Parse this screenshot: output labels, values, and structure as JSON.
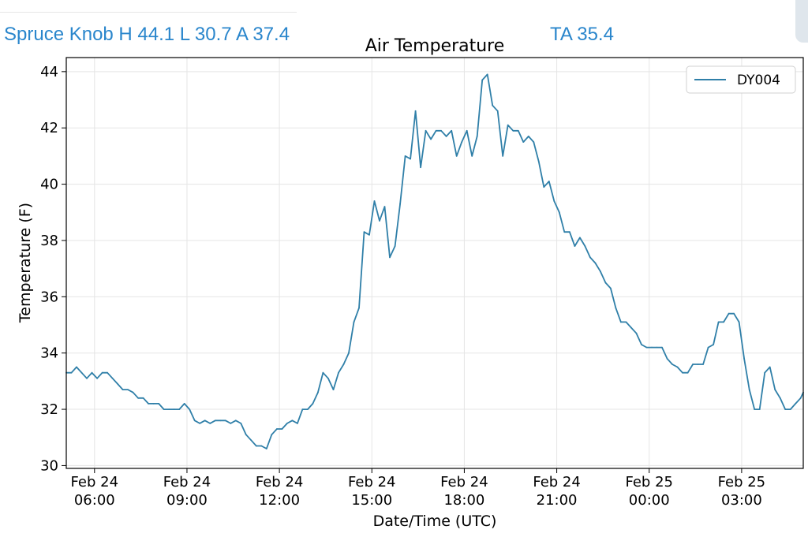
{
  "header": {
    "summary_left": "Spruce Knob H 44.1 L 30.7 A 37.4",
    "summary_right": "TA 35.4",
    "text_color": "#2a86cc"
  },
  "chart_data": {
    "type": "line",
    "title": "Air Temperature",
    "xlabel": "Date/Time (UTC)",
    "ylabel": "Temperature (F)",
    "xlim": [
      "2024-02-24T05:05",
      "2024-02-25T05:00"
    ],
    "ylim": [
      29.9,
      44.5
    ],
    "yticks": [
      30,
      32,
      34,
      36,
      38,
      40,
      42,
      44
    ],
    "xticks": [
      {
        "t": "2024-02-24T06:00",
        "line1": "Feb 24",
        "line2": "06:00"
      },
      {
        "t": "2024-02-24T09:00",
        "line1": "Feb 24",
        "line2": "09:00"
      },
      {
        "t": "2024-02-24T12:00",
        "line1": "Feb 24",
        "line2": "12:00"
      },
      {
        "t": "2024-02-24T15:00",
        "line1": "Feb 24",
        "line2": "15:00"
      },
      {
        "t": "2024-02-24T18:00",
        "line1": "Feb 24",
        "line2": "18:00"
      },
      {
        "t": "2024-02-24T21:00",
        "line1": "Feb 24",
        "line2": "21:00"
      },
      {
        "t": "2024-02-25T00:00",
        "line1": "Feb 25",
        "line2": "00:00"
      },
      {
        "t": "2024-02-25T03:00",
        "line1": "Feb 25",
        "line2": "03:00"
      }
    ],
    "grid": true,
    "legend_position": "top-right",
    "series": [
      {
        "name": "DY004",
        "color": "#2f7fa8",
        "points": [
          [
            "2024-02-24T05:05",
            33.3
          ],
          [
            "2024-02-24T05:15",
            33.3
          ],
          [
            "2024-02-24T05:25",
            33.5
          ],
          [
            "2024-02-24T05:35",
            33.3
          ],
          [
            "2024-02-24T05:45",
            33.1
          ],
          [
            "2024-02-24T05:55",
            33.3
          ],
          [
            "2024-02-24T06:05",
            33.1
          ],
          [
            "2024-02-24T06:15",
            33.3
          ],
          [
            "2024-02-24T06:25",
            33.3
          ],
          [
            "2024-02-24T06:35",
            33.1
          ],
          [
            "2024-02-24T06:45",
            32.9
          ],
          [
            "2024-02-24T06:55",
            32.7
          ],
          [
            "2024-02-24T07:05",
            32.7
          ],
          [
            "2024-02-24T07:15",
            32.6
          ],
          [
            "2024-02-24T07:25",
            32.4
          ],
          [
            "2024-02-24T07:35",
            32.4
          ],
          [
            "2024-02-24T07:45",
            32.2
          ],
          [
            "2024-02-24T07:55",
            32.2
          ],
          [
            "2024-02-24T08:05",
            32.2
          ],
          [
            "2024-02-24T08:15",
            32.0
          ],
          [
            "2024-02-24T08:25",
            32.0
          ],
          [
            "2024-02-24T08:35",
            32.0
          ],
          [
            "2024-02-24T08:45",
            32.0
          ],
          [
            "2024-02-24T08:55",
            32.2
          ],
          [
            "2024-02-24T09:05",
            32.0
          ],
          [
            "2024-02-24T09:15",
            31.6
          ],
          [
            "2024-02-24T09:25",
            31.5
          ],
          [
            "2024-02-24T09:35",
            31.6
          ],
          [
            "2024-02-24T09:45",
            31.5
          ],
          [
            "2024-02-24T09:55",
            31.6
          ],
          [
            "2024-02-24T10:05",
            31.6
          ],
          [
            "2024-02-24T10:15",
            31.6
          ],
          [
            "2024-02-24T10:25",
            31.5
          ],
          [
            "2024-02-24T10:35",
            31.6
          ],
          [
            "2024-02-24T10:45",
            31.5
          ],
          [
            "2024-02-24T10:55",
            31.1
          ],
          [
            "2024-02-24T11:05",
            30.9
          ],
          [
            "2024-02-24T11:15",
            30.7
          ],
          [
            "2024-02-24T11:25",
            30.7
          ],
          [
            "2024-02-24T11:35",
            30.6
          ],
          [
            "2024-02-24T11:45",
            31.1
          ],
          [
            "2024-02-24T11:55",
            31.3
          ],
          [
            "2024-02-24T12:05",
            31.3
          ],
          [
            "2024-02-24T12:15",
            31.5
          ],
          [
            "2024-02-24T12:25",
            31.6
          ],
          [
            "2024-02-24T12:35",
            31.5
          ],
          [
            "2024-02-24T12:45",
            32.0
          ],
          [
            "2024-02-24T12:55",
            32.0
          ],
          [
            "2024-02-24T13:05",
            32.2
          ],
          [
            "2024-02-24T13:15",
            32.6
          ],
          [
            "2024-02-24T13:25",
            33.3
          ],
          [
            "2024-02-24T13:35",
            33.1
          ],
          [
            "2024-02-24T13:45",
            32.7
          ],
          [
            "2024-02-24T13:55",
            33.3
          ],
          [
            "2024-02-24T14:05",
            33.6
          ],
          [
            "2024-02-24T14:15",
            34.0
          ],
          [
            "2024-02-24T14:25",
            35.1
          ],
          [
            "2024-02-24T14:35",
            35.6
          ],
          [
            "2024-02-24T14:45",
            38.3
          ],
          [
            "2024-02-24T14:55",
            38.2
          ],
          [
            "2024-02-24T15:05",
            39.4
          ],
          [
            "2024-02-24T15:15",
            38.7
          ],
          [
            "2024-02-24T15:25",
            39.2
          ],
          [
            "2024-02-24T15:35",
            37.4
          ],
          [
            "2024-02-24T15:45",
            37.8
          ],
          [
            "2024-02-24T15:55",
            39.3
          ],
          [
            "2024-02-24T16:05",
            41.0
          ],
          [
            "2024-02-24T16:15",
            40.9
          ],
          [
            "2024-02-24T16:25",
            42.6
          ],
          [
            "2024-02-24T16:35",
            40.6
          ],
          [
            "2024-02-24T16:45",
            41.9
          ],
          [
            "2024-02-24T16:55",
            41.6
          ],
          [
            "2024-02-24T17:05",
            41.9
          ],
          [
            "2024-02-24T17:15",
            41.9
          ],
          [
            "2024-02-24T17:25",
            41.7
          ],
          [
            "2024-02-24T17:35",
            41.9
          ],
          [
            "2024-02-24T17:45",
            41.0
          ],
          [
            "2024-02-24T17:55",
            41.5
          ],
          [
            "2024-02-24T18:05",
            41.9
          ],
          [
            "2024-02-24T18:15",
            41.0
          ],
          [
            "2024-02-24T18:25",
            41.7
          ],
          [
            "2024-02-24T18:35",
            43.7
          ],
          [
            "2024-02-24T18:45",
            43.9
          ],
          [
            "2024-02-24T18:55",
            42.8
          ],
          [
            "2024-02-24T19:05",
            42.6
          ],
          [
            "2024-02-24T19:15",
            41.0
          ],
          [
            "2024-02-24T19:25",
            42.1
          ],
          [
            "2024-02-24T19:35",
            41.9
          ],
          [
            "2024-02-24T19:45",
            41.9
          ],
          [
            "2024-02-24T19:55",
            41.5
          ],
          [
            "2024-02-24T20:05",
            41.7
          ],
          [
            "2024-02-24T20:15",
            41.5
          ],
          [
            "2024-02-24T20:25",
            40.8
          ],
          [
            "2024-02-24T20:35",
            39.9
          ],
          [
            "2024-02-24T20:45",
            40.1
          ],
          [
            "2024-02-24T20:55",
            39.4
          ],
          [
            "2024-02-24T21:05",
            39.0
          ],
          [
            "2024-02-24T21:15",
            38.3
          ],
          [
            "2024-02-24T21:25",
            38.3
          ],
          [
            "2024-02-24T21:35",
            37.8
          ],
          [
            "2024-02-24T21:45",
            38.1
          ],
          [
            "2024-02-24T21:55",
            37.8
          ],
          [
            "2024-02-24T22:05",
            37.4
          ],
          [
            "2024-02-24T22:15",
            37.2
          ],
          [
            "2024-02-24T22:25",
            36.9
          ],
          [
            "2024-02-24T22:35",
            36.5
          ],
          [
            "2024-02-24T22:45",
            36.3
          ],
          [
            "2024-02-24T22:55",
            35.6
          ],
          [
            "2024-02-24T23:05",
            35.1
          ],
          [
            "2024-02-24T23:15",
            35.1
          ],
          [
            "2024-02-24T23:25",
            34.9
          ],
          [
            "2024-02-24T23:35",
            34.7
          ],
          [
            "2024-02-24T23:45",
            34.3
          ],
          [
            "2024-02-24T23:55",
            34.2
          ],
          [
            "2024-02-25T00:05",
            34.2
          ],
          [
            "2024-02-25T00:15",
            34.2
          ],
          [
            "2024-02-25T00:25",
            34.2
          ],
          [
            "2024-02-25T00:35",
            33.8
          ],
          [
            "2024-02-25T00:45",
            33.6
          ],
          [
            "2024-02-25T00:55",
            33.5
          ],
          [
            "2024-02-25T01:05",
            33.3
          ],
          [
            "2024-02-25T01:15",
            33.3
          ],
          [
            "2024-02-25T01:25",
            33.6
          ],
          [
            "2024-02-25T01:35",
            33.6
          ],
          [
            "2024-02-25T01:45",
            33.6
          ],
          [
            "2024-02-25T01:55",
            34.2
          ],
          [
            "2024-02-25T02:05",
            34.3
          ],
          [
            "2024-02-25T02:15",
            35.1
          ],
          [
            "2024-02-25T02:25",
            35.1
          ],
          [
            "2024-02-25T02:35",
            35.4
          ],
          [
            "2024-02-25T02:45",
            35.4
          ],
          [
            "2024-02-25T02:55",
            35.1
          ],
          [
            "2024-02-25T03:05",
            33.8
          ],
          [
            "2024-02-25T03:15",
            32.7
          ],
          [
            "2024-02-25T03:25",
            32.0
          ],
          [
            "2024-02-25T03:35",
            32.0
          ],
          [
            "2024-02-25T03:45",
            33.3
          ],
          [
            "2024-02-25T03:55",
            33.5
          ],
          [
            "2024-02-25T04:05",
            32.7
          ],
          [
            "2024-02-25T04:15",
            32.4
          ],
          [
            "2024-02-25T04:25",
            32.0
          ],
          [
            "2024-02-25T04:35",
            32.0
          ],
          [
            "2024-02-25T04:45",
            32.2
          ],
          [
            "2024-02-25T04:55",
            32.4
          ],
          [
            "2024-02-25T05:00",
            32.6
          ]
        ]
      }
    ]
  }
}
